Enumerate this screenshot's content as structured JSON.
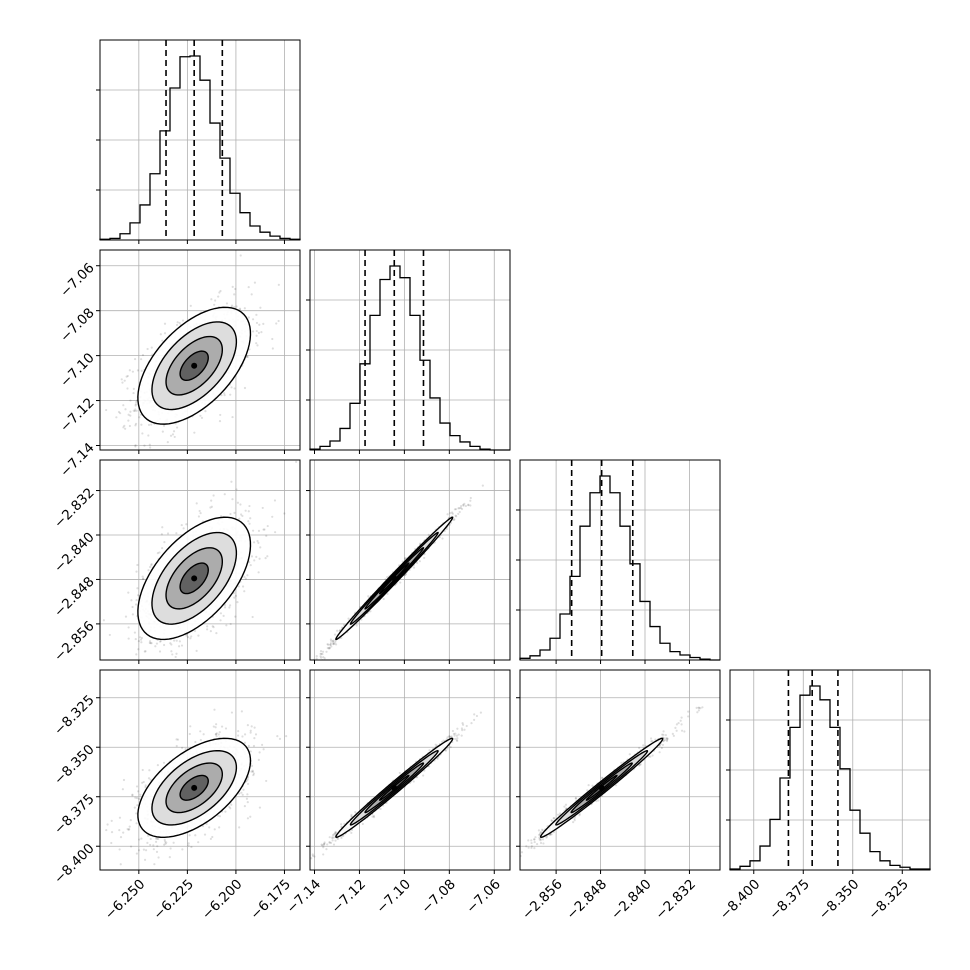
{
  "chart_data": {
    "type": "corner",
    "parameters": [
      {
        "hist": [
          1,
          2,
          8,
          22,
          45,
          85,
          140,
          195,
          235,
          236,
          205,
          150,
          105,
          60,
          35,
          18,
          10,
          5,
          2,
          1
        ],
        "range": [
          -6.27,
          -6.167
        ],
        "quantiles": [
          -6.236,
          -6.2215,
          -6.207
        ],
        "ticks": [
          {
            "value": -6.25,
            "label": "−6.250"
          },
          {
            "value": -6.225,
            "label": "−6.225"
          },
          {
            "value": -6.2,
            "label": "−6.200"
          },
          {
            "value": -6.175,
            "label": "−6.175"
          }
        ],
        "center": -6.2215,
        "sigma": 0.0145
      },
      {
        "hist": [
          1,
          4,
          10,
          24,
          52,
          96,
          150,
          190,
          205,
          192,
          150,
          100,
          58,
          30,
          16,
          9,
          4,
          1,
          0,
          0
        ],
        "range": [
          -7.142,
          -7.053
        ],
        "quantiles": [
          -7.1175,
          -7.1045,
          -7.0915
        ],
        "ticks": [
          {
            "value": -7.14,
            "label": "−7.14"
          },
          {
            "value": -7.12,
            "label": "−7.12"
          },
          {
            "value": -7.1,
            "label": "−7.10"
          },
          {
            "value": -7.08,
            "label": "−7.08"
          },
          {
            "value": -7.06,
            "label": "−7.06"
          }
        ],
        "center": -7.1045,
        "sigma": 0.013
      },
      {
        "hist": [
          2,
          5,
          12,
          26,
          55,
          100,
          160,
          200,
          220,
          200,
          160,
          115,
          70,
          40,
          20,
          10,
          6,
          3,
          1,
          0
        ],
        "range": [
          -2.8625,
          -2.8265
        ],
        "quantiles": [
          -2.8532,
          -2.8478,
          -2.8422
        ],
        "ticks": [
          {
            "value": -2.856,
            "label": "−2.856"
          },
          {
            "value": -2.848,
            "label": "−2.848"
          },
          {
            "value": -2.84,
            "label": "−2.840"
          },
          {
            "value": -2.832,
            "label": "−2.832"
          }
        ],
        "center": -2.8478,
        "sigma": 0.0055
      },
      {
        "hist": [
          1,
          4,
          10,
          26,
          55,
          100,
          155,
          190,
          200,
          185,
          155,
          110,
          65,
          40,
          20,
          10,
          5,
          3,
          1,
          1
        ],
        "range": [
          -8.412,
          -8.311
        ],
        "quantiles": [
          -8.3825,
          -8.3705,
          -8.3575
        ],
        "ticks": [
          {
            "value": -8.4,
            "label": "−8.400"
          },
          {
            "value": -8.375,
            "label": "−8.375"
          },
          {
            "value": -8.35,
            "label": "−8.350"
          },
          {
            "value": -8.325,
            "label": "−8.325"
          }
        ],
        "center": -8.3705,
        "sigma": 0.0125
      }
    ],
    "correlations": [
      [
        1,
        0.55,
        0.55,
        0.55
      ],
      [
        0.55,
        1,
        0.995,
        0.99
      ],
      [
        0.55,
        0.995,
        1,
        0.99
      ],
      [
        0.55,
        0.99,
        0.99,
        1
      ]
    ],
    "contour_levels_sigma": [
      0.5,
      1.0,
      1.5,
      2.0
    ],
    "n_samples_shown": 1200,
    "grid": true,
    "quantile_line_style": "dashed",
    "colors": {
      "line": "#000000",
      "grid": "#b0b0b0",
      "points": "#000000"
    }
  }
}
